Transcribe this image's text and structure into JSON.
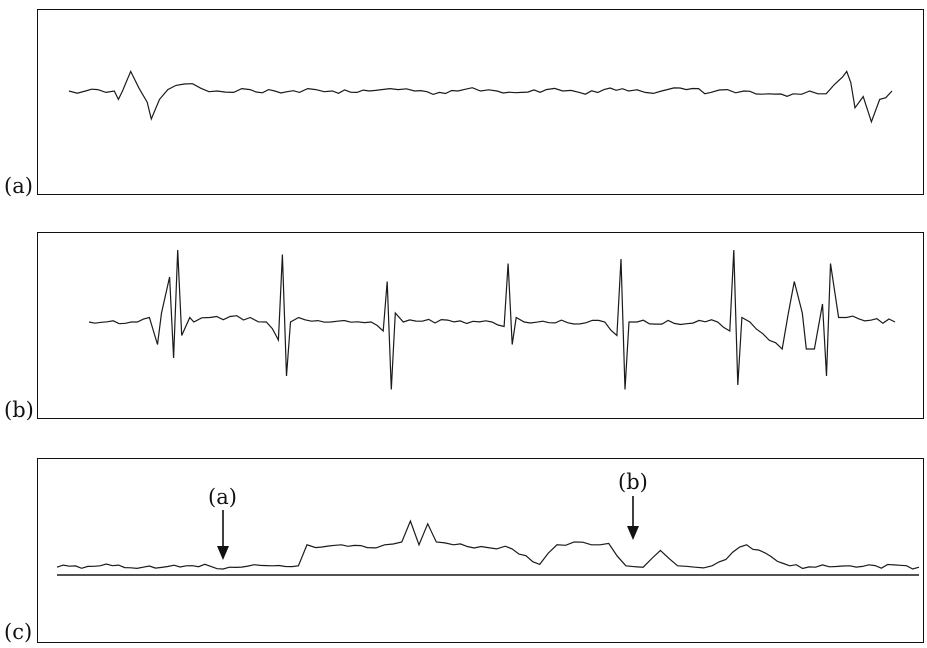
{
  "panels": [
    {
      "label": "(a)"
    },
    {
      "label": "(b)"
    },
    {
      "label": "(c)"
    }
  ],
  "annotations": {
    "a": "(a)",
    "b": "(b)"
  },
  "colors": {
    "ink": "#1a1a1a",
    "background": "#ffffff"
  },
  "chart_data": [
    {
      "type": "line",
      "title": "",
      "grid": false,
      "series": [
        {
          "x": [
            0,
            0.02,
            0.035,
            0.045,
            0.055,
            0.06,
            0.065,
            0.075,
            0.085,
            0.095,
            0.1,
            0.11,
            0.12,
            0.13,
            0.14,
            0.16,
            0.18,
            0.2,
            0.22,
            0.25,
            0.28,
            0.3,
            0.32,
            0.35,
            0.38,
            0.4,
            0.42,
            0.45,
            0.48,
            0.5,
            0.52,
            0.55,
            0.58,
            0.6,
            0.62,
            0.65,
            0.68,
            0.7,
            0.72,
            0.75,
            0.78,
            0.8,
            0.82,
            0.85,
            0.88,
            0.9,
            0.92,
            0.94,
            0.945,
            0.95,
            0.955,
            0.965,
            0.975,
            0.985,
            1.0
          ],
          "y": [
            0,
            0,
            0.05,
            -0.05,
            0,
            -0.3,
            0,
            0.7,
            0.1,
            -0.4,
            -1.0,
            -0.3,
            0.05,
            0.2,
            0.25,
            0.1,
            0,
            -0.05,
            0.05,
            0,
            -0.05,
            0.05,
            0,
            -0.05,
            0.05,
            0.05,
            0,
            -0.05,
            0.05,
            0,
            0,
            -0.05,
            0.05,
            0,
            -0.05,
            0.05,
            0,
            -0.05,
            0,
            0.05,
            -0.05,
            0.05,
            0,
            -0.1,
            -0.1,
            0,
            -0.1,
            0.5,
            0.7,
            0.3,
            -0.6,
            -0.2,
            -1.1,
            -0.3,
            0
          ]
        }
      ]
    },
    {
      "type": "line",
      "title": "",
      "grid": false,
      "series": [
        {
          "x": [
            0,
            0.06,
            0.075,
            0.085,
            0.09,
            0.1,
            0.105,
            0.11,
            0.115,
            0.125,
            0.13,
            0.15,
            0.2,
            0.22,
            0.235,
            0.24,
            0.245,
            0.25,
            0.26,
            0.3,
            0.35,
            0.365,
            0.37,
            0.375,
            0.38,
            0.39,
            0.5,
            0.515,
            0.52,
            0.525,
            0.53,
            0.54,
            0.64,
            0.655,
            0.66,
            0.665,
            0.67,
            0.68,
            0.78,
            0.795,
            0.8,
            0.805,
            0.81,
            0.82,
            0.86,
            0.875,
            0.885,
            0.89,
            0.9,
            0.91,
            0.915,
            0.92,
            0.93,
            0.94,
            1.0
          ],
          "y": [
            0,
            0,
            0.1,
            -0.5,
            0.2,
            1.0,
            -0.8,
            1.6,
            -0.3,
            0.1,
            0,
            0.1,
            0.1,
            0,
            -0.4,
            1.5,
            -1.2,
            0,
            0.1,
            0,
            0,
            -0.2,
            0.9,
            -1.5,
            0.2,
            0,
            0,
            -0.1,
            1.3,
            -0.5,
            0.1,
            0,
            0,
            -0.3,
            1.4,
            -1.5,
            0,
            0,
            0,
            -0.2,
            1.6,
            -1.4,
            0.1,
            0,
            -0.6,
            0.9,
            0.2,
            -0.6,
            -0.6,
            0.4,
            -1.2,
            1.3,
            0.1,
            0.1,
            0
          ]
        }
      ]
    },
    {
      "type": "line",
      "title": "",
      "grid": false,
      "series": [
        {
          "x": [
            0,
            0.05,
            0.1,
            0.15,
            0.2,
            0.25,
            0.28,
            0.29,
            0.3,
            0.33,
            0.36,
            0.38,
            0.4,
            0.41,
            0.42,
            0.43,
            0.44,
            0.46,
            0.5,
            0.52,
            0.56,
            0.58,
            0.6,
            0.62,
            0.64,
            0.66,
            0.68,
            0.7,
            0.72,
            0.74,
            0.76,
            0.8,
            0.85,
            0.88,
            0.92,
            1.0
          ],
          "y": [
            0.2,
            0.3,
            0.2,
            0.3,
            0.2,
            0.3,
            0.3,
            1.8,
            1.6,
            1.8,
            1.6,
            1.8,
            2.0,
            3.5,
            1.8,
            3.3,
            2.0,
            1.8,
            1.6,
            1.7,
            0.4,
            1.8,
            2.0,
            1.8,
            1.9,
            0.3,
            0.2,
            1.4,
            0.3,
            0.2,
            0.3,
            1.8,
            0.3,
            0.2,
            0.3,
            0.2
          ]
        }
      ]
    }
  ]
}
